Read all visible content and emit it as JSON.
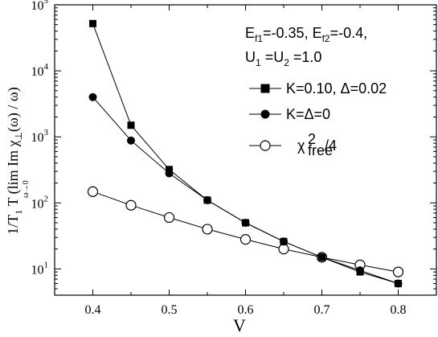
{
  "chart_data": {
    "type": "line",
    "xlabel": "V",
    "ylabel": "1/T₁T (lim Im χ⊥(ω) / ω)",
    "ylabel_parts": {
      "prefix": "1/T",
      "sub1": "1",
      "mid": " T (",
      "lim": "lim",
      "lim_sub": "ω→0",
      "im": " Im χ",
      "chi_sub": "⊥",
      "suffix": "(ω) / ω)"
    },
    "xlim": [
      0.35,
      0.85
    ],
    "ylim": [
      4,
      100000
    ],
    "yscale": "log",
    "x_ticks": [
      "0.4",
      "0.5",
      "0.6",
      "0.7",
      "0.8"
    ],
    "x_tick_values": [
      0.4,
      0.5,
      0.6,
      0.7,
      0.8
    ],
    "y_ticks": [
      {
        "value": 10,
        "base": "10",
        "exp": "1"
      },
      {
        "value": 100,
        "base": "10",
        "exp": "2"
      },
      {
        "value": 1000,
        "base": "10",
        "exp": "3"
      },
      {
        "value": 10000,
        "base": "10",
        "exp": "4"
      },
      {
        "value": 100000,
        "base": "10",
        "exp": "5"
      }
    ],
    "annotation": {
      "line1": {
        "E1": "E",
        "E1sub": "f1",
        "v1": "=-0.35, ",
        "E2": "E",
        "E2sub": "f2",
        "v2": "=-0.4,"
      },
      "line2": {
        "U1": "U",
        "U1sub": "1",
        "eq": " =U",
        "U2sub": "2",
        "v": " =1.0"
      }
    },
    "series": [
      {
        "name": "K=0.10, Δ=0.02",
        "marker": "square-filled",
        "x": [
          0.4,
          0.45,
          0.5,
          0.55,
          0.6,
          0.65,
          0.7,
          0.75,
          0.8
        ],
        "y": [
          52000,
          1500,
          320,
          110,
          50,
          26,
          15,
          9,
          6
        ]
      },
      {
        "name": "K=Δ=0",
        "marker": "circle-filled",
        "x": [
          0.4,
          0.45,
          0.5,
          0.55,
          0.6,
          0.65,
          0.7,
          0.75,
          0.8
        ],
        "y": [
          4000,
          880,
          280,
          110,
          50,
          26,
          15,
          9.5,
          6
        ]
      },
      {
        "name": "χ²free/4",
        "name_parts": {
          "chi": "χ",
          "sup": "2",
          "sub": "free",
          "rest": "/4"
        },
        "marker": "circle-open",
        "x": [
          0.4,
          0.45,
          0.5,
          0.55,
          0.6,
          0.65,
          0.7,
          0.75,
          0.8
        ],
        "y": [
          148,
          92,
          60,
          40,
          28,
          20,
          15,
          11.5,
          9
        ]
      }
    ],
    "grid": false,
    "legend_position": "right"
  }
}
